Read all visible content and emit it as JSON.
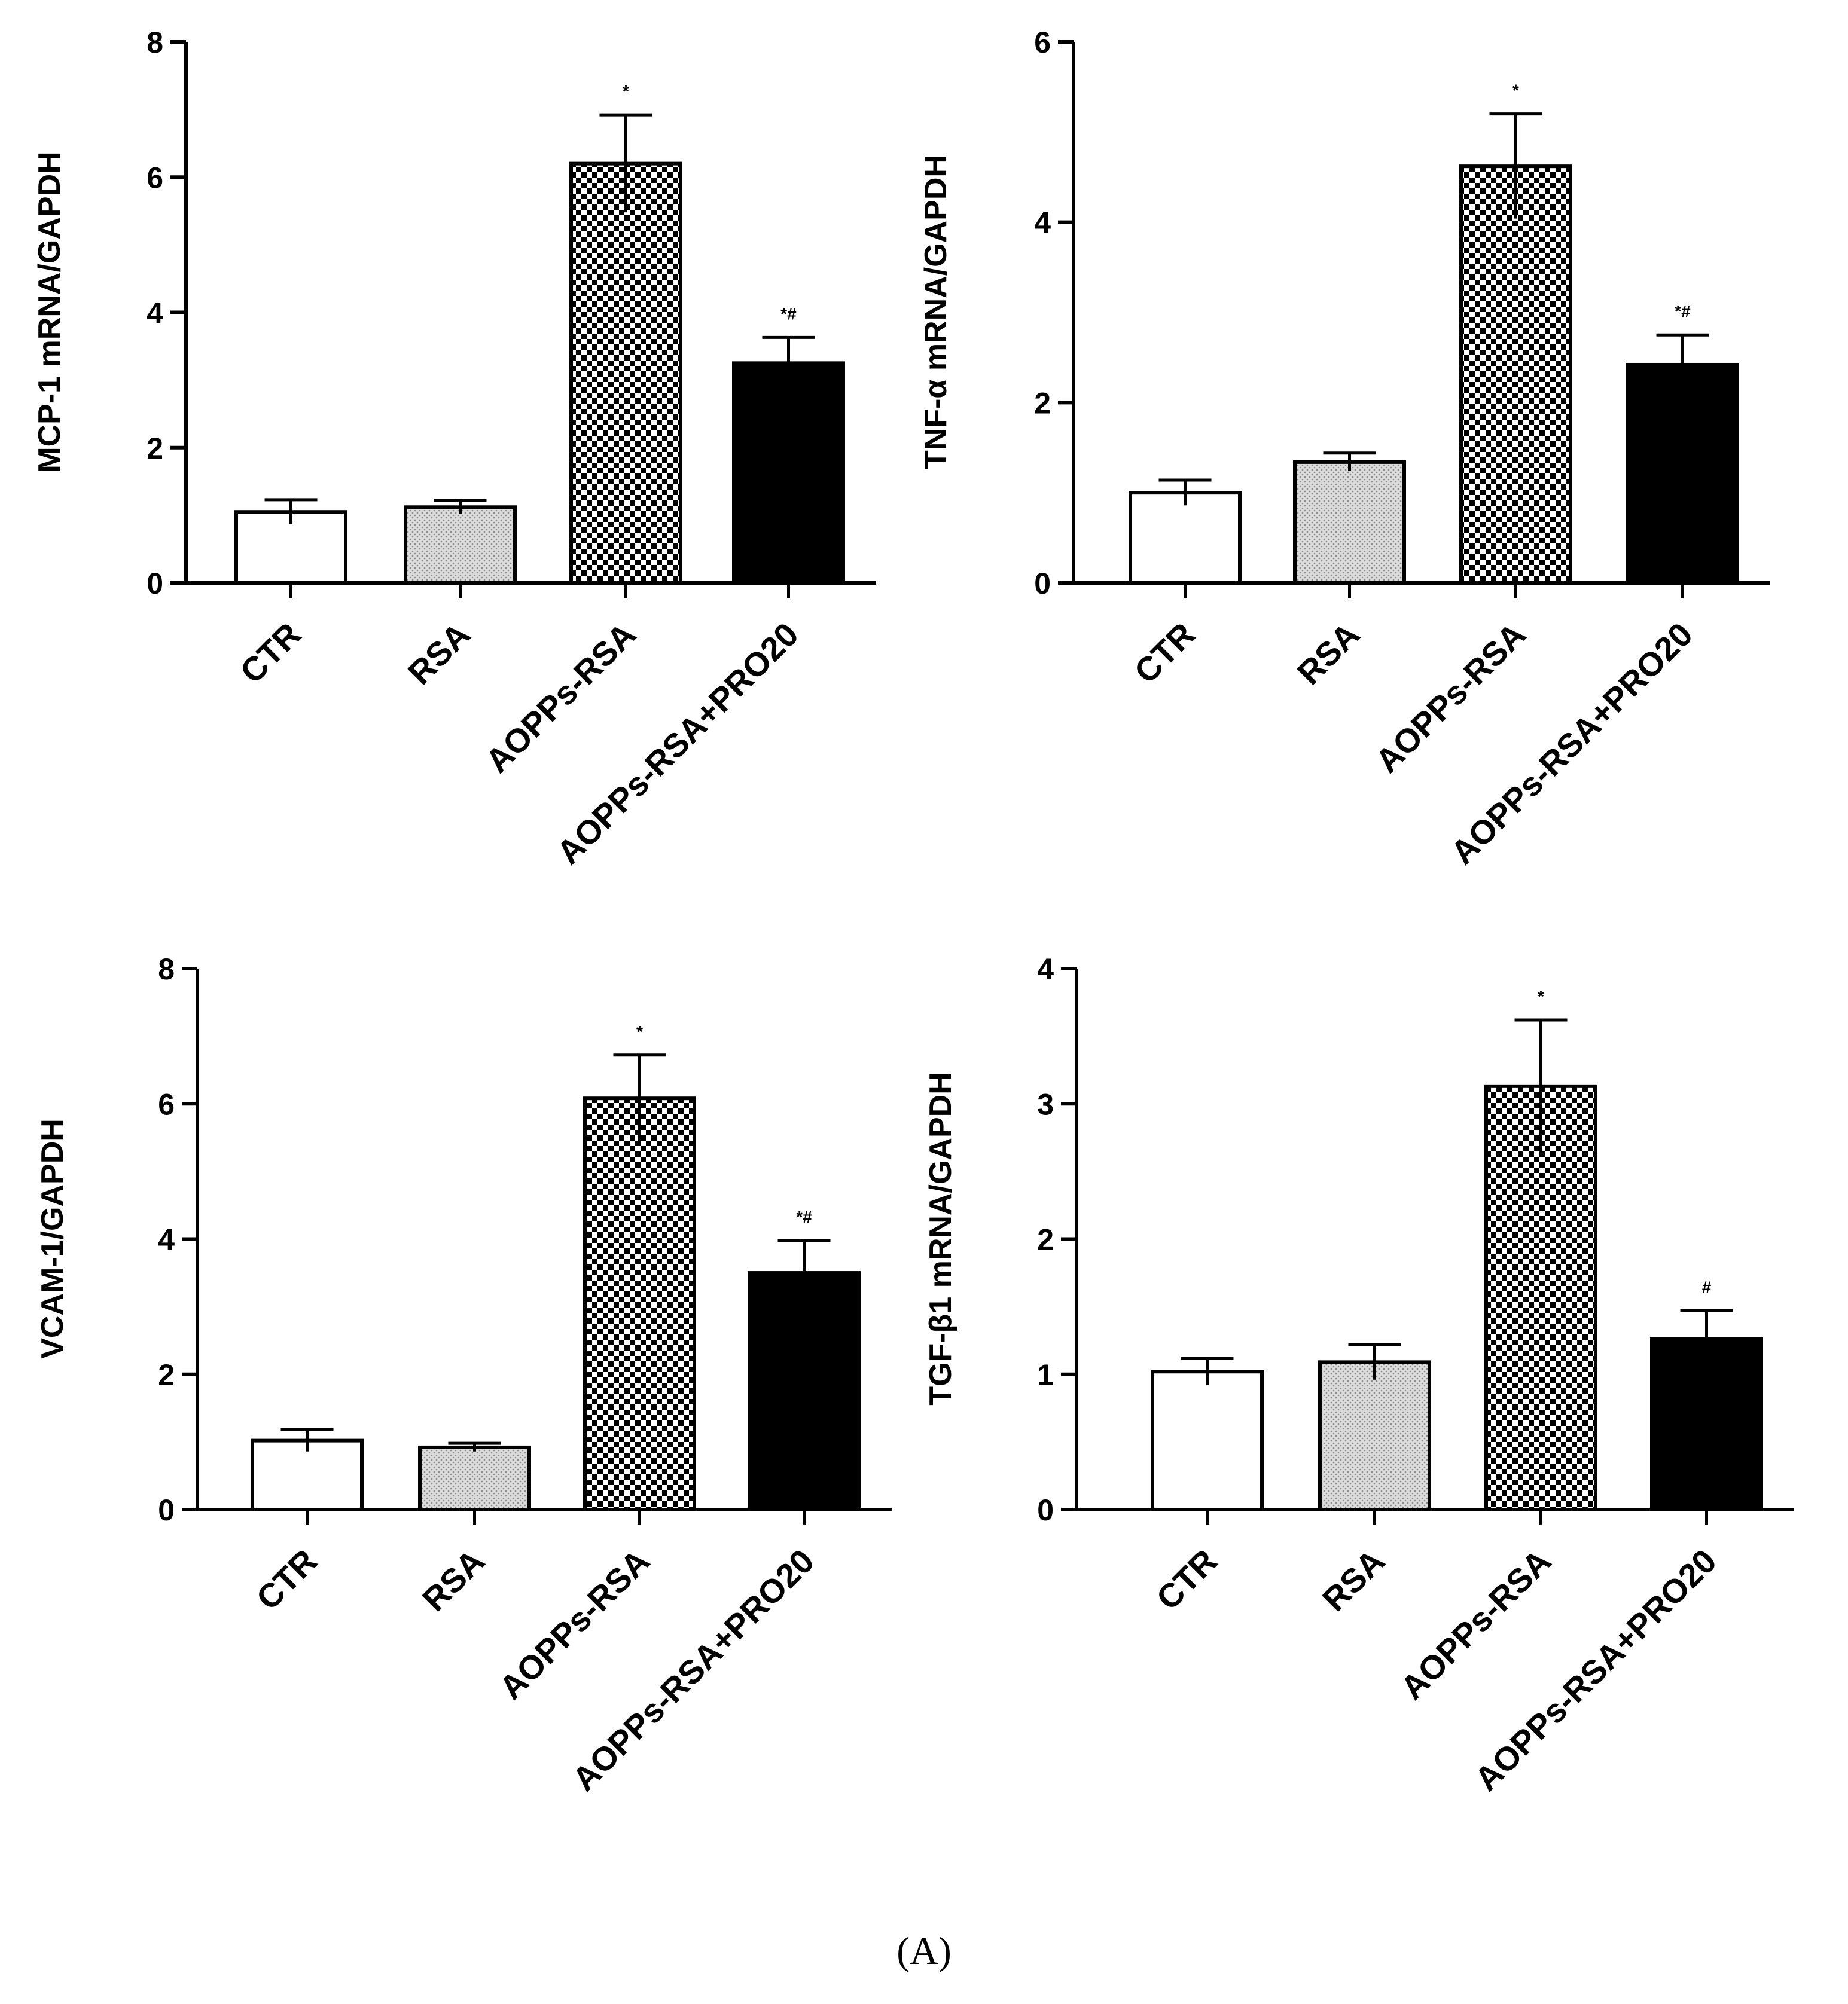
{
  "panel_label": "(A)",
  "chart_data": [
    {
      "type": "bar",
      "ylabel": "MCP-1 mRNA/GAPDH",
      "xlabel": "",
      "categories": [
        "CTR",
        "RSA",
        "AOPPs-RSA",
        "AOPPs-RSA+PRO20"
      ],
      "values": [
        1.05,
        1.12,
        6.2,
        3.25
      ],
      "errors": [
        0.18,
        0.1,
        0.72,
        0.38
      ],
      "significance": [
        "",
        "",
        "*",
        "*#"
      ],
      "fills": [
        "white",
        "dotted-gray",
        "checker",
        "black"
      ],
      "ylim": [
        0,
        8
      ],
      "yticks": [
        0,
        2,
        4,
        6,
        8
      ],
      "grid": false
    },
    {
      "type": "bar",
      "ylabel": "TNF-α mRNA/GAPDH",
      "xlabel": "",
      "categories": [
        "CTR",
        "RSA",
        "AOPPs-RSA",
        "AOPPs-RSA+PRO20"
      ],
      "values": [
        1.0,
        1.34,
        4.62,
        2.42
      ],
      "errors": [
        0.14,
        0.1,
        0.58,
        0.33
      ],
      "significance": [
        "",
        "",
        "*",
        "*#"
      ],
      "fills": [
        "white",
        "dotted-gray",
        "checker",
        "black"
      ],
      "ylim": [
        0,
        6
      ],
      "yticks": [
        0,
        2,
        4,
        6
      ],
      "grid": false
    },
    {
      "type": "bar",
      "ylabel": "VCAM-1/GAPDH",
      "xlabel": "",
      "categories": [
        "CTR",
        "RSA",
        "AOPPs-RSA",
        "AOPPs-RSA+PRO20"
      ],
      "values": [
        1.02,
        0.92,
        6.08,
        3.5
      ],
      "errors": [
        0.16,
        0.06,
        0.64,
        0.48
      ],
      "significance": [
        "",
        "",
        "*",
        "*#"
      ],
      "fills": [
        "white",
        "dotted-gray",
        "checker",
        "black"
      ],
      "ylim": [
        0,
        8
      ],
      "yticks": [
        0,
        2,
        4,
        6,
        8
      ],
      "grid": false
    },
    {
      "type": "bar",
      "ylabel": "TGF-β1 mRNA/GAPDH",
      "xlabel": "",
      "categories": [
        "CTR",
        "RSA",
        "AOPPs-RSA",
        "AOPPs-RSA+PRO20"
      ],
      "values": [
        1.02,
        1.09,
        3.13,
        1.26
      ],
      "errors": [
        0.1,
        0.13,
        0.49,
        0.21
      ],
      "significance": [
        "",
        "",
        "*",
        "#"
      ],
      "fills": [
        "white",
        "dotted-gray",
        "checker",
        "black"
      ],
      "ylim": [
        0,
        4
      ],
      "yticks": [
        0,
        1,
        2,
        3,
        4
      ],
      "grid": false
    }
  ]
}
